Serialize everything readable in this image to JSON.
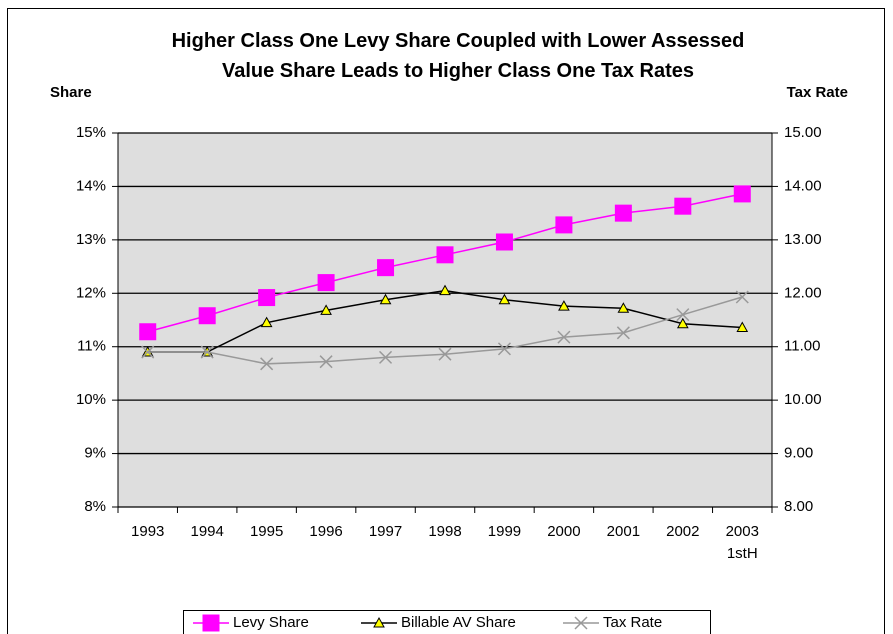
{
  "chart_data": {
    "type": "line",
    "title": "Higher Class One Levy Share Coupled with Lower Assessed\nValue Share Leads to Higher Class One Tax Rates",
    "y_label": "Share",
    "y2_label": "Tax Rate",
    "categories": [
      "1993",
      "1994",
      "1995",
      "1996",
      "1997",
      "1998",
      "1999",
      "2000",
      "2001",
      "2002",
      "2003\n1stH"
    ],
    "series": [
      {
        "name": "Levy Share",
        "color": "#ff00ff",
        "marker": "square",
        "values": [
          11.28,
          11.58,
          11.92,
          12.2,
          12.48,
          12.72,
          12.96,
          13.28,
          13.5,
          13.63,
          13.86
        ]
      },
      {
        "name": "Billable AV Share",
        "color": "#000000",
        "marker": "triangle",
        "values": [
          10.9,
          10.9,
          11.45,
          11.68,
          11.88,
          12.05,
          11.88,
          11.76,
          11.72,
          11.43,
          11.36
        ]
      },
      {
        "name": "Tax Rate",
        "color": "#999999",
        "marker": "x",
        "axis": "y2",
        "values": [
          10.9,
          10.9,
          10.68,
          10.72,
          10.8,
          10.86,
          10.96,
          11.18,
          11.26,
          11.6,
          11.93
        ]
      }
    ],
    "ylim": [
      8,
      15
    ],
    "yticks": [
      {
        "value": 8,
        "label": "8%"
      },
      {
        "value": 9,
        "label": "9%"
      },
      {
        "value": 10,
        "label": "10%"
      },
      {
        "value": 11,
        "label": "11%"
      },
      {
        "value": 12,
        "label": "12%"
      },
      {
        "value": 13,
        "label": "13%"
      },
      {
        "value": 14,
        "label": "14%"
      },
      {
        "value": 15,
        "label": "15%"
      }
    ],
    "y2lim": [
      8,
      15
    ],
    "y2ticks": [
      {
        "value": 8,
        "label": "8.00"
      },
      {
        "value": 9,
        "label": "9.00"
      },
      {
        "value": 10,
        "label": "10.00"
      },
      {
        "value": 11,
        "label": "11.00"
      },
      {
        "value": 12,
        "label": "12.00"
      },
      {
        "value": 13,
        "label": "13.00"
      },
      {
        "value": 14,
        "label": "14.00"
      },
      {
        "value": 15,
        "label": "15.00"
      }
    ],
    "grid": true,
    "legend": "bottom"
  }
}
